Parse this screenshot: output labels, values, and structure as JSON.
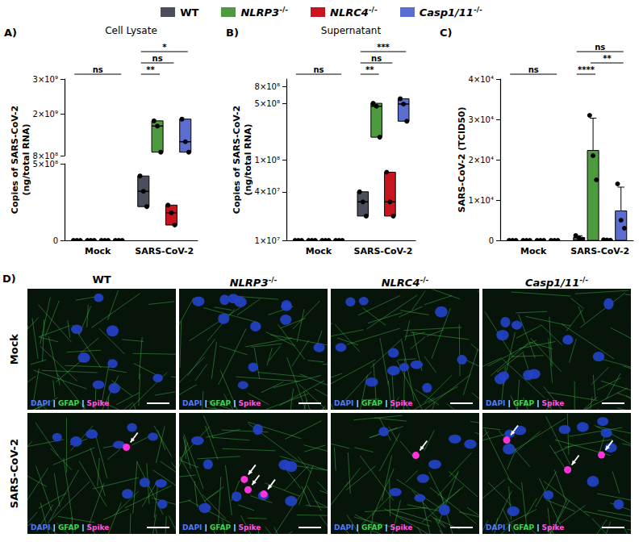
{
  "chart_data": [
    {
      "type": "box",
      "panel": "A)",
      "title": "Cell Lysate",
      "y_label": "Copies of SARS-CoV-2\n(ng/total RNA)",
      "legend": "top",
      "grid": false,
      "categories": [
        "Mock",
        "SARS-CoV-2"
      ],
      "y_segments": [
        {
          "ylim": [
            800000000,
            3000000000
          ],
          "yticks": [
            {
              "value": 800000000,
              "label": "8×10⁸"
            },
            {
              "value": 2000000000,
              "label": "2×10⁹"
            },
            {
              "value": 3000000000,
              "label": "3×10⁹"
            }
          ]
        },
        {
          "ylim": [
            0,
            500000000
          ],
          "yticks": [
            0,
            {
              "value": 500000000,
              "label": "5×10⁸"
            }
          ]
        }
      ],
      "series": [
        {
          "name": "WT",
          "color": "#4b4f5c",
          "values": [
            {
              "box": [
                0,
                0,
                0
              ],
              "points": [
                0,
                0,
                0
              ]
            },
            {
              "box": [
                220000000,
                320000000,
                420000000
              ],
              "points": [
                420000000,
                320000000,
                220000000
              ]
            }
          ]
        },
        {
          "name": "NLRP3-/-",
          "color": "#4e9a3e",
          "values": [
            {
              "box": [
                0,
                0,
                0
              ],
              "points": [
                0,
                0,
                0
              ]
            },
            {
              "box": [
                900000000,
                1650000000,
                1800000000
              ],
              "points": [
                1800000000,
                1650000000,
                900000000
              ]
            }
          ]
        },
        {
          "name": "NLRC4-/-",
          "color": "#c8141e",
          "values": [
            {
              "box": [
                0,
                0,
                0
              ],
              "points": [
                0,
                0,
                0
              ]
            },
            {
              "box": [
                100000000,
                180000000,
                230000000
              ],
              "points": [
                230000000,
                180000000,
                100000000
              ]
            }
          ]
        },
        {
          "name": "Casp1/11-/-",
          "color": "#5b6ecf",
          "values": [
            {
              "box": [
                0,
                0,
                0
              ],
              "points": [
                0,
                0,
                0
              ]
            },
            {
              "box": [
                900000000,
                1200000000,
                1850000000
              ],
              "points": [
                1850000000,
                1200000000,
                900000000
              ]
            }
          ]
        }
      ],
      "annotations": [
        {
          "category": "Mock",
          "from": "WT",
          "to": "Casp1/11-/-",
          "label": "ns"
        },
        {
          "category": "SARS-CoV-2",
          "from": "WT",
          "to": "NLRP3-/-",
          "label": "**"
        },
        {
          "category": "SARS-CoV-2",
          "from": "WT",
          "to": "NLRC4-/-",
          "label": "ns"
        },
        {
          "category": "SARS-CoV-2",
          "from": "WT",
          "to": "Casp1/11-/-",
          "label": "*"
        }
      ]
    },
    {
      "type": "box",
      "panel": "B)",
      "title": "Supernatant",
      "y_label": "Copies of SARS-CoV-2\n(ng/total RNA)",
      "log": "y",
      "grid": false,
      "categories": [
        "Mock",
        "SARS-CoV-2"
      ],
      "ylim": [
        10000000,
        1000000000
      ],
      "yticks": [
        {
          "value": 10000000,
          "label": "1×10⁷"
        },
        {
          "value": 40000000,
          "label": "4×10⁷"
        },
        {
          "value": 100000000,
          "label": "1×10⁸"
        },
        {
          "value": 500000000,
          "label": "5×10⁸"
        },
        {
          "value": 800000000,
          "label": "8×10⁸"
        }
      ],
      "series": [
        {
          "name": "WT",
          "color": "#4b4f5c",
          "values": [
            {
              "box": [
                10000000,
                10000000,
                10000000
              ],
              "points": [
                10000000,
                10000000,
                10000000
              ]
            },
            {
              "box": [
                20000000,
                30000000,
                40000000
              ],
              "points": [
                40000000,
                30000000,
                20000000
              ]
            }
          ]
        },
        {
          "name": "NLRP3-/-",
          "color": "#4e9a3e",
          "values": [
            {
              "box": [
                10000000,
                10000000,
                10000000
              ],
              "points": [
                10000000,
                10000000,
                10000000
              ]
            },
            {
              "box": [
                190000000,
                460000000,
                500000000
              ],
              "points": [
                500000000,
                460000000,
                190000000
              ]
            }
          ]
        },
        {
          "name": "NLRC4-/-",
          "color": "#c8141e",
          "values": [
            {
              "box": [
                10000000,
                10000000,
                10000000
              ],
              "points": [
                10000000,
                10000000,
                10000000
              ]
            },
            {
              "box": [
                20000000,
                30000000,
                70000000
              ],
              "points": [
                70000000,
                30000000,
                20000000
              ]
            }
          ]
        },
        {
          "name": "Casp1/11-/-",
          "color": "#5b6ecf",
          "values": [
            {
              "box": [
                10000000,
                10000000,
                10000000
              ],
              "points": [
                10000000,
                10000000,
                10000000
              ]
            },
            {
              "box": [
                300000000,
                490000000,
                570000000
              ],
              "points": [
                570000000,
                490000000,
                300000000
              ]
            }
          ]
        }
      ],
      "annotations": [
        {
          "category": "Mock",
          "from": "WT",
          "to": "Casp1/11-/-",
          "label": "ns"
        },
        {
          "category": "SARS-CoV-2",
          "from": "WT",
          "to": "NLRP3-/-",
          "label": "**"
        },
        {
          "category": "SARS-CoV-2",
          "from": "WT",
          "to": "NLRC4-/-",
          "label": "ns"
        },
        {
          "category": "SARS-CoV-2",
          "from": "WT",
          "to": "Casp1/11-/-",
          "label": "***"
        }
      ]
    },
    {
      "type": "bar",
      "panel": "C)",
      "y_label": "SARS-CoV-2 (TCID50)",
      "grid": false,
      "categories": [
        "Mock",
        "SARS-CoV-2"
      ],
      "ylim": [
        0,
        40000
      ],
      "yticks": [
        0,
        {
          "value": 10000,
          "label": "1×10⁴"
        },
        {
          "value": 20000,
          "label": "2×10⁴"
        },
        {
          "value": 30000,
          "label": "3×10⁴"
        },
        {
          "value": 40000,
          "label": "4×10⁴"
        }
      ],
      "series": [
        {
          "name": "WT",
          "color": "#4b4f5c",
          "values": [
            {
              "mean": 0,
              "sd": 0,
              "points": [
                0,
                0,
                0
              ]
            },
            {
              "mean": 700,
              "sd": 450,
              "points": [
                1200,
                600,
                300
              ]
            }
          ]
        },
        {
          "name": "NLRP3-/-",
          "color": "#4e9a3e",
          "values": [
            {
              "mean": 0,
              "sd": 0,
              "points": [
                0,
                0,
                0
              ]
            },
            {
              "mean": 22300,
              "sd": 8000,
              "points": [
                31000,
                21000,
                15000
              ]
            }
          ]
        },
        {
          "name": "NLRC4-/-",
          "color": "#c8141e",
          "values": [
            {
              "mean": 0,
              "sd": 0,
              "points": [
                0,
                0,
                0
              ]
            },
            {
              "mean": 100,
              "sd": 50,
              "points": [
                150,
                100,
                50
              ]
            }
          ]
        },
        {
          "name": "Casp1/11-/-",
          "color": "#5b6ecf",
          "values": [
            {
              "mean": 0,
              "sd": 0,
              "points": [
                0,
                0,
                0
              ]
            },
            {
              "mean": 7300,
              "sd": 5900,
              "points": [
                14000,
                5000,
                3000
              ]
            }
          ]
        }
      ],
      "annotations": [
        {
          "category": "Mock",
          "from": "WT",
          "to": "Casp1/11-/-",
          "label": "ns"
        },
        {
          "category": "SARS-CoV-2",
          "from": "WT",
          "to": "NLRP3-/-",
          "label": "****"
        },
        {
          "category": "SARS-CoV-2",
          "from": "NLRP3-/-",
          "to": "Casp1/11-/-",
          "label": "**"
        },
        {
          "category": "SARS-CoV-2",
          "from": "WT",
          "to": "Casp1/11-/-",
          "label": "ns"
        }
      ]
    }
  ],
  "panel_d": {
    "label": "D)",
    "columns": [
      "WT",
      "NLRP3-/-",
      "NLRC4-/-",
      "Casp1/11-/-"
    ],
    "rows": [
      "Mock",
      "SARS-CoV-2"
    ],
    "stains": [
      {
        "text": "DAPI",
        "color": "#4f78ff"
      },
      {
        "text": "GFAP",
        "color": "#43d04e"
      },
      {
        "text": "Spike",
        "color": "#ff55dd"
      }
    ],
    "separator": "|",
    "arrows": [
      [
        0,
        0,
        0,
        0
      ],
      [
        1,
        3,
        1,
        3
      ]
    ]
  }
}
